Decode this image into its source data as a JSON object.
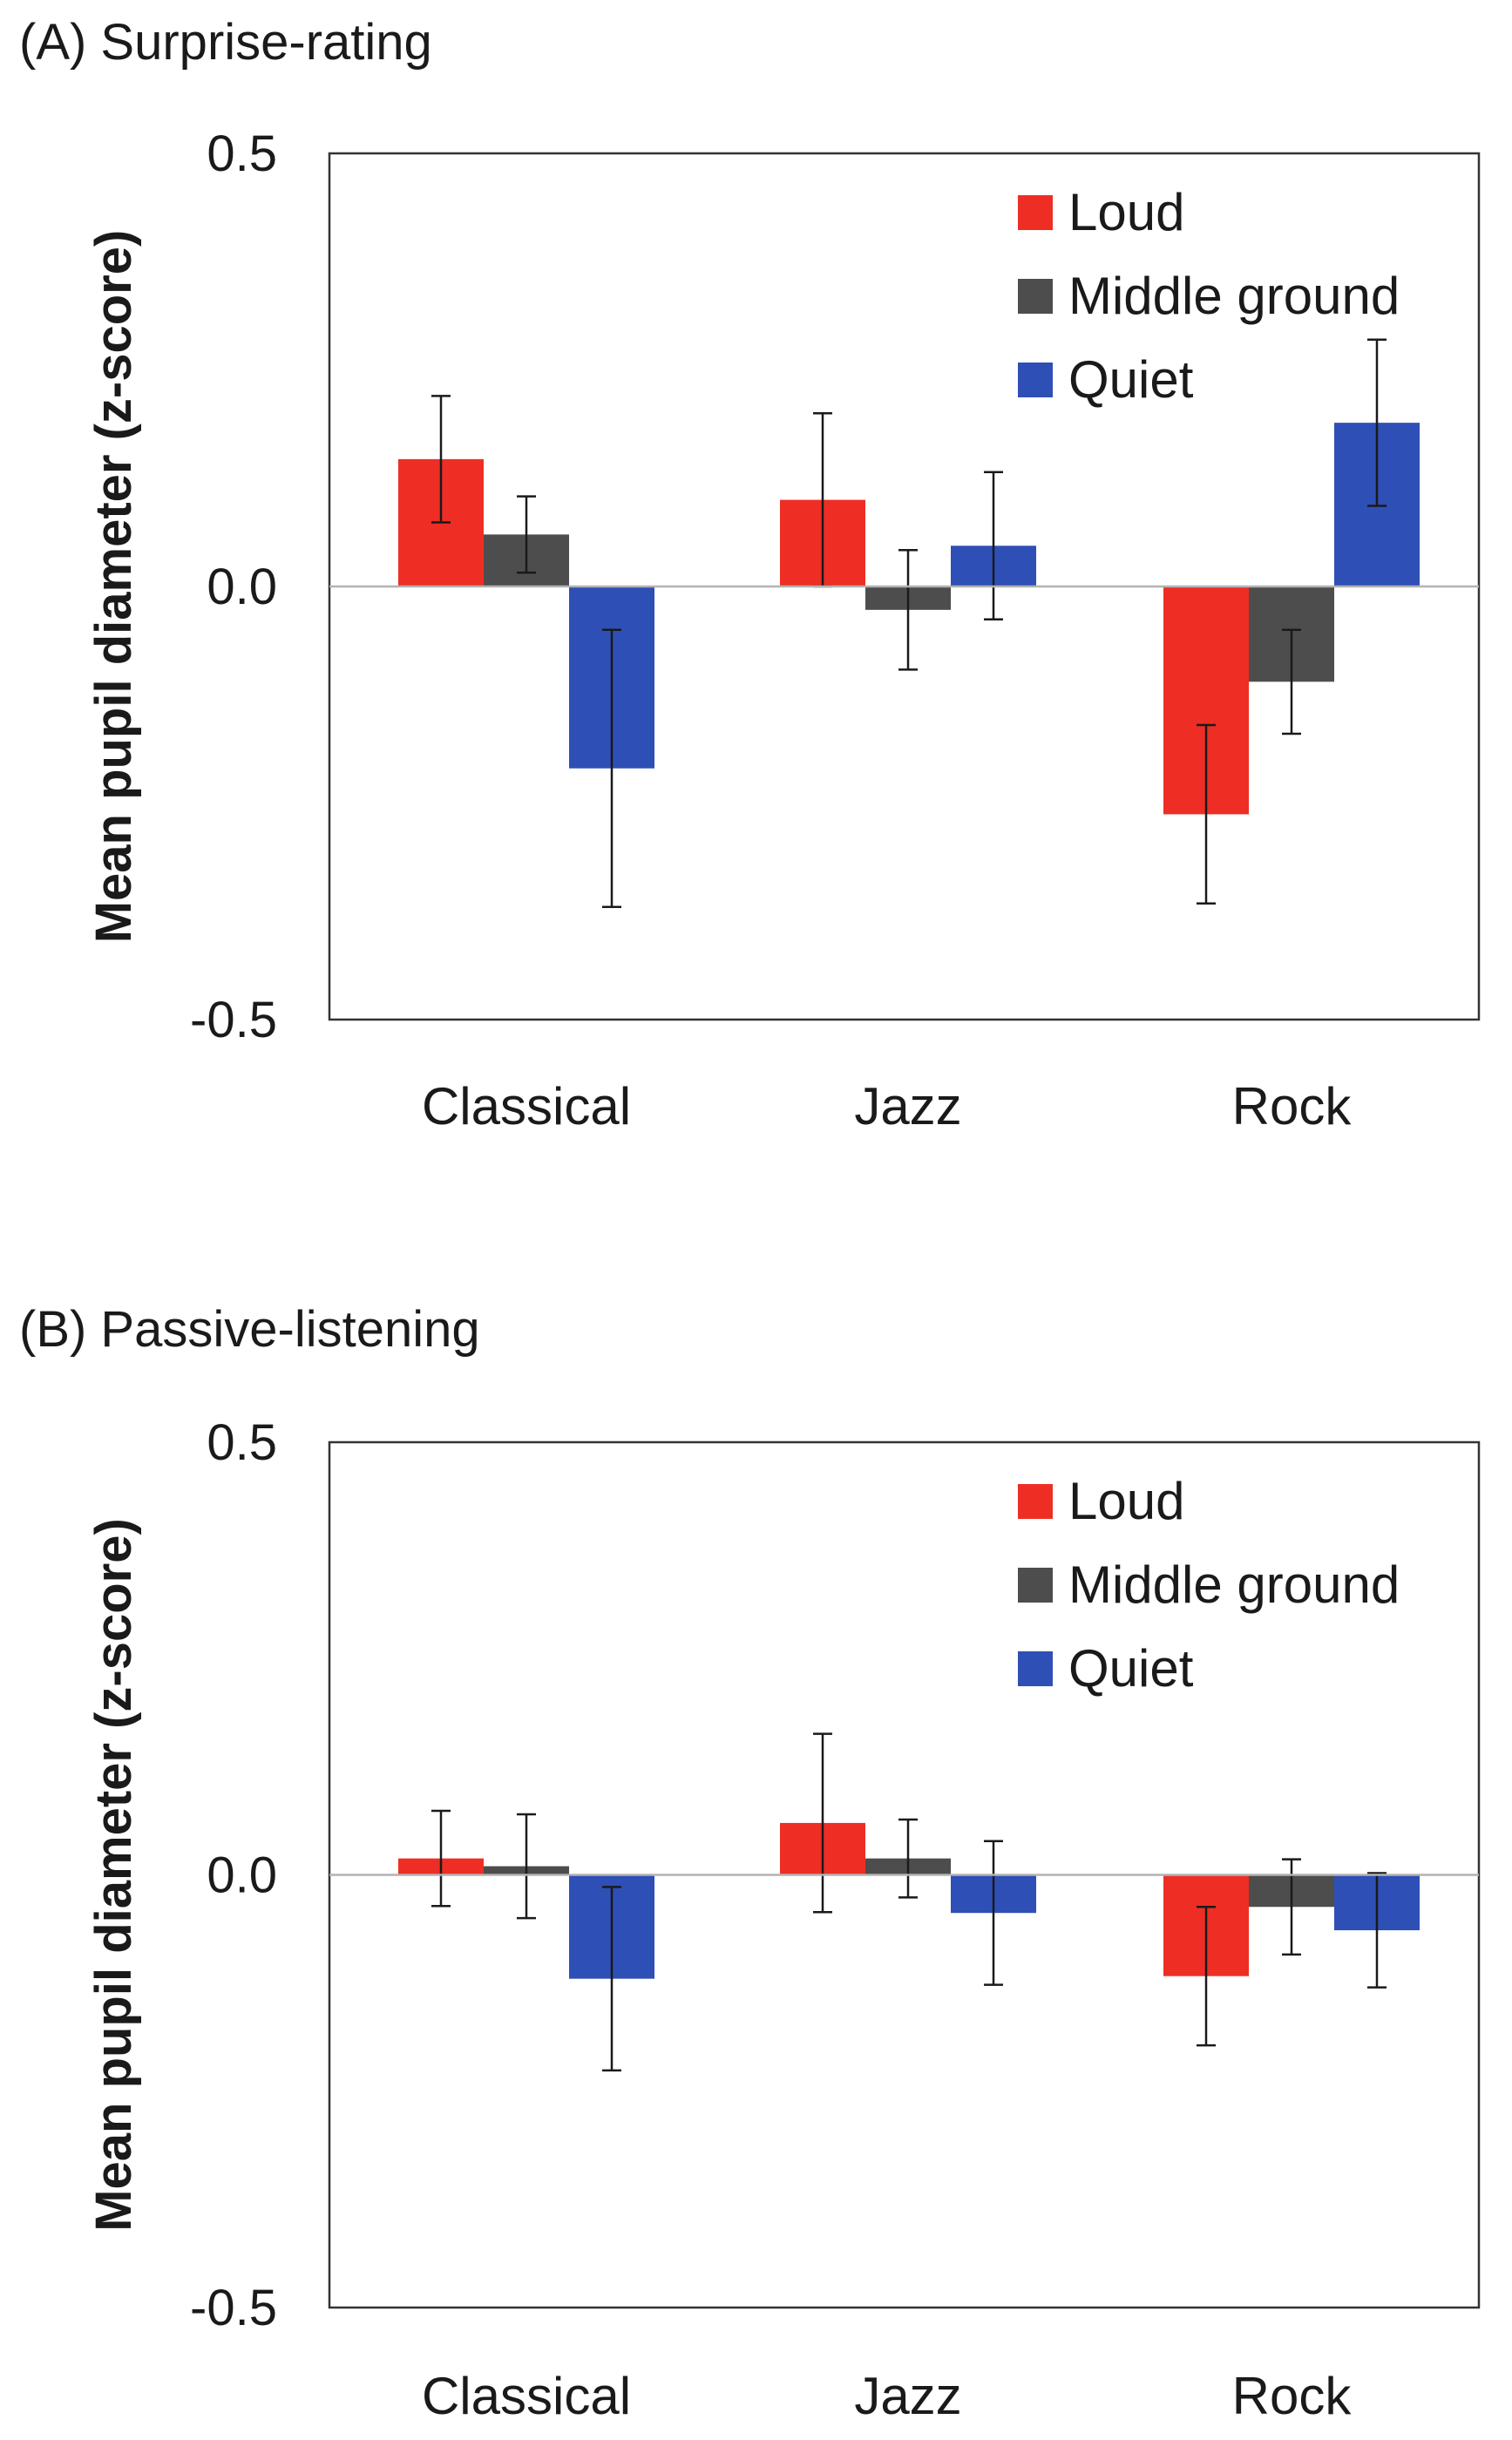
{
  "chart_data": [
    {
      "type": "bar",
      "title": "(A) Surprise-rating",
      "xlabel": "",
      "ylabel": "Mean pupil diameter (z-score)",
      "ylim": [
        -0.5,
        0.5
      ],
      "yticks": [
        "0.5",
        "0.0",
        "-0.5"
      ],
      "categories": [
        "Classical",
        "Jazz",
        "Rock"
      ],
      "legend_position": "top-right",
      "grid": false,
      "series": [
        {
          "name": "Loud",
          "color": "#ee2e24",
          "values": [
            0.147,
            0.1,
            -0.263
          ],
          "errors": [
            0.073,
            0.1,
            0.103
          ]
        },
        {
          "name": "Middle ground",
          "color": "#4d4d4d",
          "values": [
            0.06,
            -0.027,
            -0.11
          ],
          "errors": [
            0.044,
            0.069,
            0.06
          ]
        },
        {
          "name": "Quiet",
          "color": "#2e4fb6",
          "values": [
            -0.21,
            0.047,
            0.189
          ],
          "errors": [
            0.16,
            0.085,
            0.096
          ]
        }
      ]
    },
    {
      "type": "bar",
      "title": "(B) Passive-listening",
      "xlabel": "",
      "ylabel": "Mean pupil diameter (z-score)",
      "ylim": [
        -0.5,
        0.5
      ],
      "yticks": [
        "0.5",
        "0.0",
        "-0.5"
      ],
      "categories": [
        "Classical",
        "Jazz",
        "Rock"
      ],
      "legend_position": "top-right",
      "grid": false,
      "series": [
        {
          "name": "Loud",
          "color": "#ee2e24",
          "values": [
            0.019,
            0.06,
            -0.117
          ],
          "errors": [
            0.055,
            0.103,
            0.08
          ]
        },
        {
          "name": "Middle ground",
          "color": "#4d4d4d",
          "values": [
            0.01,
            0.019,
            -0.037
          ],
          "errors": [
            0.06,
            0.045,
            0.055
          ]
        },
        {
          "name": "Quiet",
          "color": "#2e4fb6",
          "values": [
            -0.12,
            -0.044,
            -0.064
          ],
          "errors": [
            0.106,
            0.083,
            0.066
          ]
        }
      ]
    }
  ]
}
